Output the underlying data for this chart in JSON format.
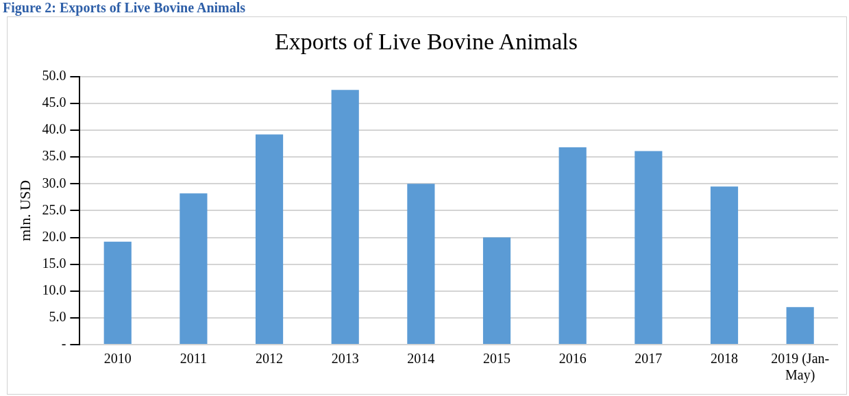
{
  "chart_data": {
    "type": "bar",
    "title": "Exports of Live Bovine Animals",
    "ylabel": "mln. USD",
    "annotations": [
      "Figure 2: Exports of Live Bovine Animals"
    ],
    "categories": [
      "2010",
      "2011",
      "2012",
      "2013",
      "2014",
      "2015",
      "2016",
      "2017",
      "2018",
      "2019 (Jan-May)"
    ],
    "values": [
      19.2,
      28.2,
      39.2,
      47.5,
      30.0,
      20.0,
      36.8,
      36.1,
      29.5,
      7.0
    ],
    "color": "#5b9bd5",
    "ylim": [
      0,
      50
    ],
    "yticks": [
      {
        "value": 0,
        "label": "-"
      },
      {
        "value": 5,
        "label": "5.0"
      },
      {
        "value": 10,
        "label": "10.0"
      },
      {
        "value": 15,
        "label": "15.0"
      },
      {
        "value": 20,
        "label": "20.0"
      },
      {
        "value": 25,
        "label": "25.0"
      },
      {
        "value": 30,
        "label": "30.0"
      },
      {
        "value": 35,
        "label": "35.0"
      },
      {
        "value": 40,
        "label": "40.0"
      },
      {
        "value": 45,
        "label": "45.0"
      },
      {
        "value": 50,
        "label": "50.0"
      }
    ],
    "grid": "y"
  }
}
